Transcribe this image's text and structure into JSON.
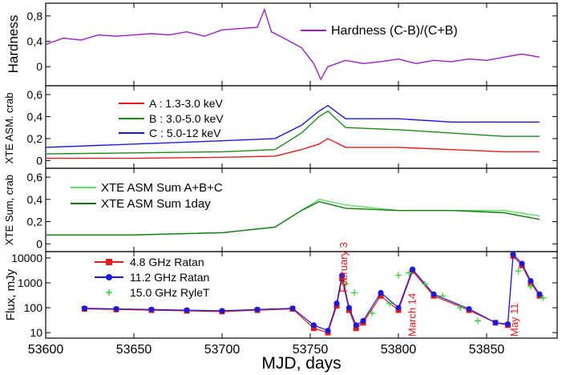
{
  "chart_data": [
    {
      "type": "line",
      "panel": "hardness",
      "ylabel": "Hardness",
      "yticks": [
        "0",
        "0,4",
        "0,8"
      ],
      "ytick_values": [
        0,
        0.4,
        0.8
      ],
      "ylim": [
        -0.3,
        1.0
      ],
      "series": [
        {
          "name": "Hardness  (C-B)/(C+B)",
          "color": "#9a1fc4",
          "x": [
            53600,
            53610,
            53620,
            53630,
            53640,
            53650,
            53660,
            53670,
            53680,
            53690,
            53700,
            53710,
            53720,
            53724,
            53728,
            53735,
            53745,
            53752,
            53756,
            53760,
            53770,
            53780,
            53790,
            53800,
            53810,
            53820,
            53830,
            53840,
            53850,
            53860,
            53870,
            53880
          ],
          "y": [
            0.35,
            0.45,
            0.42,
            0.5,
            0.48,
            0.5,
            0.52,
            0.5,
            0.55,
            0.48,
            0.58,
            0.6,
            0.62,
            0.9,
            0.55,
            0.45,
            0.3,
            0.05,
            -0.2,
            0.0,
            0.1,
            0.05,
            0.08,
            0.12,
            0.05,
            0.1,
            0.08,
            0.12,
            0.1,
            0.15,
            0.2,
            0.15
          ]
        }
      ]
    },
    {
      "type": "line",
      "panel": "asm-bands",
      "ylabel": "XTE ASM.  crab",
      "yticks": [
        "0",
        "0,2",
        "0,4",
        "0,6"
      ],
      "ytick_values": [
        0,
        0.2,
        0.4,
        0.6
      ],
      "ylim": [
        -0.07,
        0.68
      ],
      "series": [
        {
          "name": "A : 1.3-3.0 keV",
          "color": "#e51a1a",
          "x": [
            53600,
            53650,
            53700,
            53730,
            53745,
            53755,
            53760,
            53770,
            53800,
            53830,
            53860,
            53880
          ],
          "y": [
            0.02,
            0.02,
            0.03,
            0.04,
            0.1,
            0.15,
            0.2,
            0.12,
            0.12,
            0.1,
            0.08,
            0.08
          ]
        },
        {
          "name": "B : 3.0-5.0 keV",
          "color": "#1a8a1a",
          "x": [
            53600,
            53650,
            53700,
            53730,
            53745,
            53755,
            53760,
            53770,
            53800,
            53830,
            53860,
            53880
          ],
          "y": [
            0.06,
            0.07,
            0.08,
            0.1,
            0.25,
            0.4,
            0.45,
            0.3,
            0.28,
            0.25,
            0.22,
            0.22
          ]
        },
        {
          "name": "C : 5.0-12 keV",
          "color": "#1a1ad8",
          "x": [
            53600,
            53650,
            53700,
            53730,
            53745,
            53755,
            53760,
            53770,
            53800,
            53830,
            53860,
            53880
          ],
          "y": [
            0.12,
            0.15,
            0.18,
            0.2,
            0.32,
            0.45,
            0.5,
            0.38,
            0.38,
            0.35,
            0.35,
            0.35
          ]
        }
      ]
    },
    {
      "type": "line",
      "panel": "asm-sum",
      "ylabel": "XTE Sum, crab",
      "yticks": [
        "0",
        "0,2",
        "0,4",
        "0,6"
      ],
      "ytick_values": [
        0,
        0.2,
        0.4,
        0.6
      ],
      "ylim": [
        -0.07,
        0.68
      ],
      "series": [
        {
          "name": "XTE ASM Sum A+B+C",
          "color": "#5fe05f",
          "x": [
            53600,
            53650,
            53700,
            53730,
            53745,
            53755,
            53770,
            53800,
            53830,
            53860,
            53880
          ],
          "y": [
            0.08,
            0.08,
            0.1,
            0.15,
            0.3,
            0.4,
            0.35,
            0.3,
            0.3,
            0.3,
            0.25
          ]
        },
        {
          "name": "XTE ASM Sum 1day",
          "color": "#137a13",
          "x": [
            53600,
            53650,
            53700,
            53730,
            53745,
            53755,
            53770,
            53800,
            53830,
            53860,
            53880
          ],
          "y": [
            0.08,
            0.08,
            0.1,
            0.15,
            0.3,
            0.38,
            0.32,
            0.3,
            0.3,
            0.28,
            0.22
          ]
        }
      ]
    },
    {
      "type": "scatter",
      "panel": "radio",
      "ylabel": "Flux, mJy",
      "yscale": "log",
      "yticks": [
        "10",
        "100",
        "1000",
        "10000"
      ],
      "ytick_values": [
        10,
        100,
        1000,
        10000
      ],
      "ylim": [
        6,
        18000
      ],
      "xlabel": "MJD, days",
      "xticks": [
        "53600",
        "53650",
        "53700",
        "53750",
        "53800",
        "53850"
      ],
      "xtick_values": [
        53600,
        53650,
        53700,
        53750,
        53800,
        53850
      ],
      "xlim": [
        53600,
        53890
      ],
      "annotations": [
        {
          "text": "February 3",
          "x": 53769,
          "color": "#e51a1a"
        },
        {
          "text": "March 14",
          "x": 53808,
          "color": "#e51a1a"
        },
        {
          "text": "May  11",
          "x": 53866,
          "color": "#e51a1a"
        }
      ],
      "series": [
        {
          "name": "4.8 GHz Ratan",
          "color": "#e51a1a",
          "marker": "square",
          "x": [
            53622,
            53640,
            53660,
            53680,
            53700,
            53720,
            53740,
            53752,
            53760,
            53765,
            53768,
            53772,
            53776,
            53780,
            53790,
            53800,
            53808,
            53820,
            53840,
            53855,
            53862,
            53865,
            53870,
            53875,
            53880
          ],
          "y": [
            90,
            85,
            80,
            75,
            70,
            80,
            90,
            15,
            10,
            120,
            1500,
            80,
            15,
            25,
            300,
            80,
            3000,
            300,
            80,
            25,
            20,
            12000,
            5000,
            1000,
            300
          ]
        },
        {
          "name": "11.2 GHz Ratan",
          "color": "#1a1ad8",
          "marker": "circle",
          "x": [
            53622,
            53640,
            53660,
            53680,
            53700,
            53720,
            53740,
            53752,
            53760,
            53765,
            53768,
            53772,
            53776,
            53780,
            53790,
            53800,
            53808,
            53820,
            53840,
            53855,
            53862,
            53865,
            53870,
            53875,
            53880
          ],
          "y": [
            95,
            90,
            85,
            80,
            75,
            85,
            95,
            20,
            12,
            150,
            2000,
            100,
            20,
            30,
            400,
            100,
            3500,
            350,
            90,
            25,
            22,
            14000,
            6000,
            1200,
            350
          ]
        },
        {
          "name": "15.0 GHz RyleT",
          "color": "#3acc3a",
          "marker": "plus",
          "x": [
            53770,
            53775,
            53785,
            53795,
            53800,
            53806,
            53815,
            53825,
            53835,
            53845,
            53868,
            53875,
            53882
          ],
          "y": [
            900,
            400,
            60,
            150,
            2000,
            2500,
            900,
            300,
            100,
            30,
            3000,
            700,
            250
          ]
        }
      ]
    }
  ]
}
